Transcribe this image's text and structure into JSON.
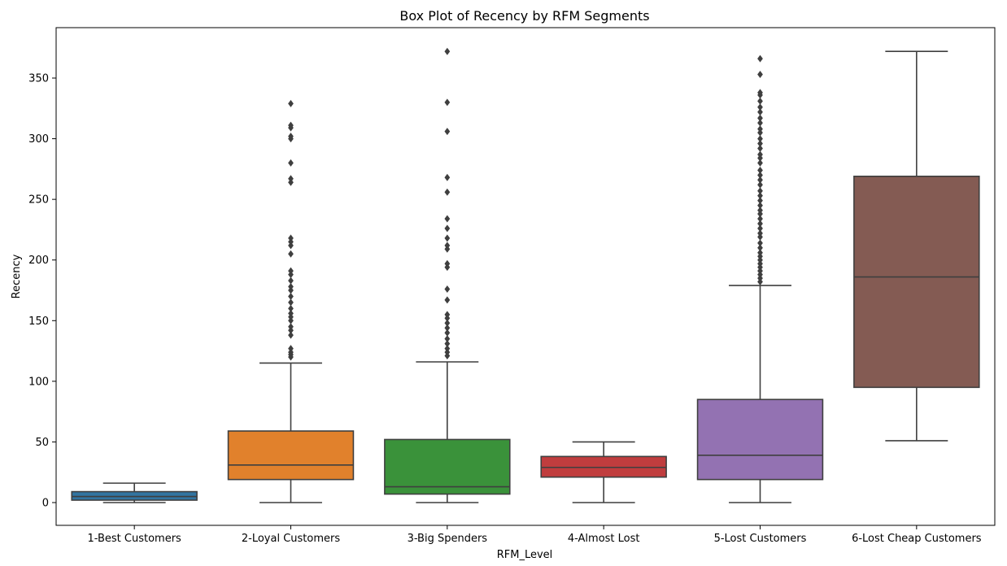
{
  "chart_data": {
    "type": "box",
    "title": "Box Plot of Recency by RFM Segments",
    "xlabel": "RFM_Level",
    "ylabel": "Recency",
    "ylim": [
      -18,
      390
    ],
    "yticks": [
      0,
      50,
      100,
      150,
      200,
      250,
      300,
      350
    ],
    "grid": false,
    "categories": [
      "1-Best Customers",
      "2-Loyal Customers",
      "3-Big Spenders",
      "4-Almost Lost",
      "5-Lost Customers",
      "6-Lost Cheap Customers"
    ],
    "boxes": [
      {
        "category": "1-Best Customers",
        "whisker_low": 0,
        "q1": 2,
        "median": 5,
        "q3": 9,
        "whisker_high": 16,
        "color": "#3274a1",
        "outliers": []
      },
      {
        "category": "2-Loyal Customers",
        "whisker_low": 0,
        "q1": 19,
        "median": 31,
        "q3": 59,
        "whisker_high": 115,
        "color": "#e1812c",
        "outliers": [
          120,
          122,
          124,
          127,
          138,
          142,
          145,
          150,
          153,
          156,
          160,
          165,
          170,
          175,
          178,
          183,
          188,
          191,
          205,
          212,
          215,
          218,
          264,
          267,
          280,
          300,
          302,
          309,
          311,
          329
        ]
      },
      {
        "category": "3-Big Spenders",
        "whisker_low": 0,
        "q1": 7,
        "median": 13,
        "q3": 52,
        "whisker_high": 116,
        "color": "#3a923a",
        "outliers": [
          121,
          124,
          127,
          131,
          135,
          140,
          144,
          148,
          152,
          155,
          167,
          176,
          194,
          197,
          209,
          212,
          218,
          226,
          234,
          256,
          268,
          306,
          330,
          372
        ]
      },
      {
        "category": "4-Almost Lost",
        "whisker_low": 0,
        "q1": 21,
        "median": 29,
        "q3": 38,
        "whisker_high": 50,
        "color": "#c03d3e",
        "outliers": []
      },
      {
        "category": "5-Lost Customers",
        "whisker_low": 0,
        "q1": 19,
        "median": 39,
        "q3": 85,
        "whisker_high": 179,
        "color": "#9372b2",
        "outliers": [
          182,
          185,
          188,
          191,
          194,
          197,
          200,
          203,
          206,
          210,
          214,
          219,
          222,
          226,
          230,
          234,
          238,
          241,
          245,
          249,
          253,
          257,
          262,
          266,
          270,
          274,
          280,
          284,
          287,
          292,
          296,
          300,
          305,
          308,
          313,
          317,
          322,
          326,
          331,
          336,
          338,
          353,
          366
        ]
      },
      {
        "category": "6-Lost Cheap Customers",
        "whisker_low": 51,
        "q1": 95,
        "median": 186,
        "q3": 269,
        "whisker_high": 372,
        "color": "#845b53",
        "outliers": []
      }
    ]
  }
}
